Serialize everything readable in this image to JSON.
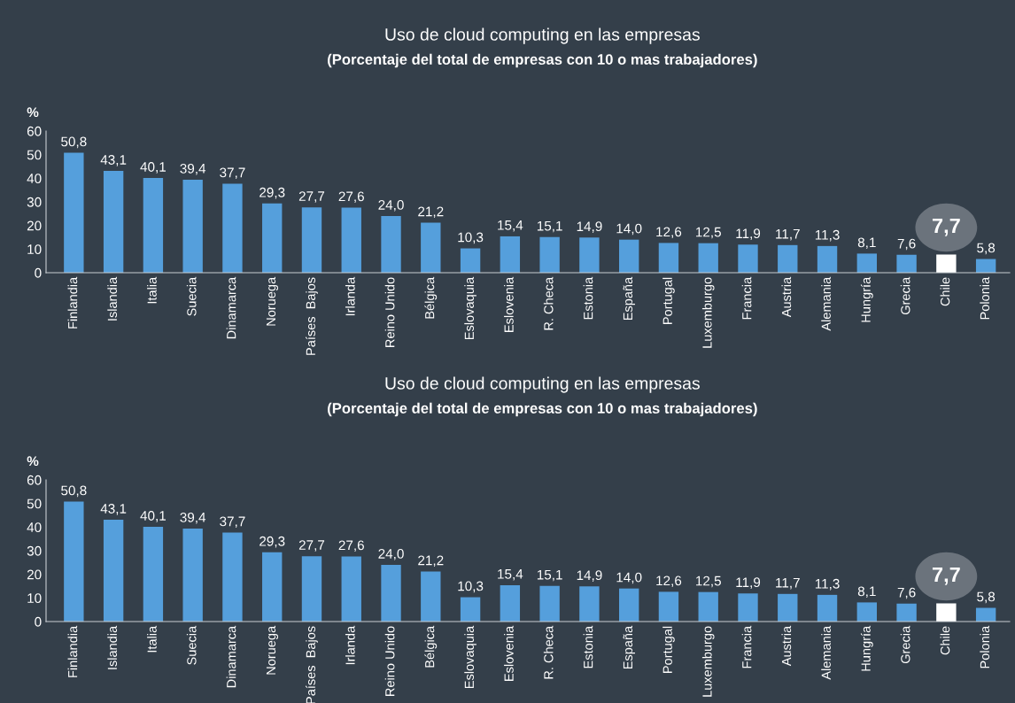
{
  "chart_data": [
    {
      "type": "bar",
      "title": "Uso de cloud computing en las empresas",
      "subtitle": "(Porcentaje del total de empresas con 10 o mas trabajadores)",
      "ylabel": "%",
      "categories": [
        "Finlandia",
        "Islandia",
        "Italia",
        "Suecia",
        "Dinamarca",
        "Noruega",
        "Países  Bajos",
        "Irlanda",
        "Reino Unido",
        "Bélgica",
        "Eslovaquia",
        "Eslovenia",
        "R. Checa",
        "Estonia",
        "España",
        "Portugal",
        "Luxemburgo",
        "Francia",
        "Austria",
        "Alemania",
        "Hungría",
        "Grecia",
        "Chile",
        "Polonia"
      ],
      "values": [
        50.8,
        43.1,
        40.1,
        39.4,
        37.7,
        29.3,
        27.7,
        27.6,
        24.0,
        21.2,
        10.3,
        15.4,
        15.1,
        14.9,
        14.0,
        12.6,
        12.5,
        11.9,
        11.7,
        11.3,
        8.1,
        7.6,
        7.7,
        5.8
      ],
      "colors": [
        "#559fdc",
        "#559fdc",
        "#559fdc",
        "#559fdc",
        "#559fdc",
        "#559fdc",
        "#559fdc",
        "#559fdc",
        "#559fdc",
        "#559fdc",
        "#559fdc",
        "#559fdc",
        "#559fdc",
        "#559fdc",
        "#559fdc",
        "#559fdc",
        "#559fdc",
        "#559fdc",
        "#559fdc",
        "#559fdc",
        "#559fdc",
        "#559fdc",
        "#ffffff",
        "#559fdc"
      ],
      "value_labels": [
        "50,8",
        "43,1",
        "40,1",
        "39,4",
        "37,7",
        "29,3",
        "27,7",
        "27,6",
        "24,0",
        "21,2",
        "10,3",
        "15,4",
        "15,1",
        "14,9",
        "14,0",
        "12,6",
        "12,5",
        "11,9",
        "11,7",
        "11,3",
        "8,1",
        "7,6",
        null,
        "5,8"
      ],
      "annotations": [
        {
          "text": "7,7",
          "x": "Chile",
          "y": 7.7
        }
      ],
      "ylim": [
        0,
        60
      ],
      "yticks": [
        0,
        10,
        20,
        30,
        40,
        50,
        60
      ],
      "grid": false,
      "legend": false
    },
    {
      "type": "bar",
      "title": "Uso de cloud computing en las empresas",
      "subtitle": "(Porcentaje del total de empresas con 10 o mas trabajadores)",
      "ylabel": "%",
      "categories": [
        "Finlandia",
        "Islandia",
        "Italia",
        "Suecia",
        "Dinamarca",
        "Noruega",
        "Países  Bajos",
        "Irlanda",
        "Reino Unido",
        "Bélgica",
        "Eslovaquia",
        "Eslovenia",
        "R. Checa",
        "Estonia",
        "España",
        "Portugal",
        "Luxemburgo",
        "Francia",
        "Austria",
        "Alemania",
        "Hungría",
        "Grecia",
        "Chile",
        "Polonia"
      ],
      "values": [
        50.8,
        43.1,
        40.1,
        39.4,
        37.7,
        29.3,
        27.7,
        27.6,
        24.0,
        21.2,
        10.3,
        15.4,
        15.1,
        14.9,
        14.0,
        12.6,
        12.5,
        11.9,
        11.7,
        11.3,
        8.1,
        7.6,
        7.7,
        5.8
      ],
      "colors": [
        "#559fdc",
        "#559fdc",
        "#559fdc",
        "#559fdc",
        "#559fdc",
        "#559fdc",
        "#559fdc",
        "#559fdc",
        "#559fdc",
        "#559fdc",
        "#559fdc",
        "#559fdc",
        "#559fdc",
        "#559fdc",
        "#559fdc",
        "#559fdc",
        "#559fdc",
        "#559fdc",
        "#559fdc",
        "#559fdc",
        "#559fdc",
        "#559fdc",
        "#ffffff",
        "#559fdc"
      ],
      "value_labels": [
        "50,8",
        "43,1",
        "40,1",
        "39,4",
        "37,7",
        "29,3",
        "27,7",
        "27,6",
        "24,0",
        "21,2",
        "10,3",
        "15,4",
        "15,1",
        "14,9",
        "14,0",
        "12,6",
        "12,5",
        "11,9",
        "11,7",
        "11,3",
        "8,1",
        "7,6",
        null,
        "5,8"
      ],
      "annotations": [
        {
          "text": "7,7",
          "x": "Chile",
          "y": 7.7
        }
      ],
      "ylim": [
        0,
        60
      ],
      "yticks": [
        0,
        10,
        20,
        30,
        40,
        50,
        60
      ],
      "grid": false,
      "legend": false
    }
  ]
}
